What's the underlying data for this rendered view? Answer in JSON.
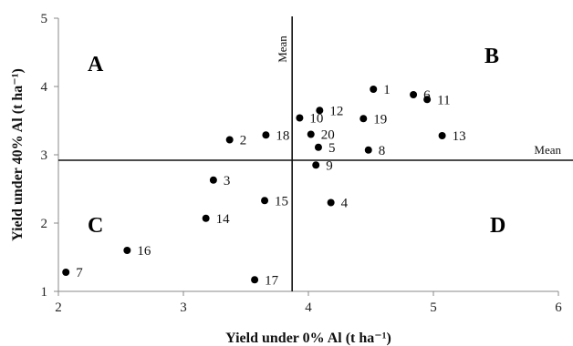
{
  "chart_data": {
    "type": "scatter",
    "title": "",
    "xlabel": "Yield under 0% Al (t ha⁻¹)",
    "ylabel": "Yield under 40% Al (t ha⁻¹)",
    "xlim": [
      2,
      6
    ],
    "ylim": [
      1,
      5
    ],
    "x_ticks": [
      "2",
      "3",
      "4",
      "5",
      "6"
    ],
    "y_ticks": [
      "1",
      "2",
      "3",
      "4",
      "5"
    ],
    "grid": false,
    "mean_lines": {
      "x": 3.87,
      "y": 2.92,
      "x_label": "Mean",
      "y_label": "Mean"
    },
    "quadrants": [
      "A",
      "B",
      "C",
      "D"
    ],
    "points": [
      {
        "label": "1",
        "x": 4.52,
        "y": 3.96
      },
      {
        "label": "2",
        "x": 3.37,
        "y": 3.22
      },
      {
        "label": "3",
        "x": 3.24,
        "y": 2.63
      },
      {
        "label": "4",
        "x": 4.18,
        "y": 2.3
      },
      {
        "label": "5",
        "x": 4.08,
        "y": 3.11
      },
      {
        "label": "6",
        "x": 4.84,
        "y": 3.88
      },
      {
        "label": "7",
        "x": 2.06,
        "y": 1.28
      },
      {
        "label": "8",
        "x": 4.48,
        "y": 3.07
      },
      {
        "label": "9",
        "x": 4.06,
        "y": 2.85
      },
      {
        "label": "10",
        "x": 3.93,
        "y": 3.54
      },
      {
        "label": "11",
        "x": 4.95,
        "y": 3.81
      },
      {
        "label": "12",
        "x": 4.09,
        "y": 3.65
      },
      {
        "label": "13",
        "x": 5.07,
        "y": 3.28
      },
      {
        "label": "14",
        "x": 3.18,
        "y": 2.07
      },
      {
        "label": "15",
        "x": 3.65,
        "y": 2.33
      },
      {
        "label": "16",
        "x": 2.55,
        "y": 1.6
      },
      {
        "label": "17",
        "x": 3.57,
        "y": 1.17
      },
      {
        "label": "18",
        "x": 3.66,
        "y": 3.29
      },
      {
        "label": "19",
        "x": 4.44,
        "y": 3.53
      },
      {
        "label": "20",
        "x": 4.02,
        "y": 3.3
      }
    ]
  }
}
